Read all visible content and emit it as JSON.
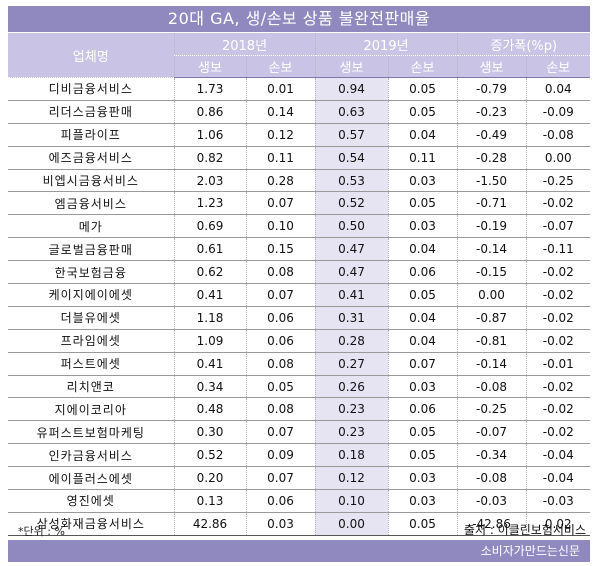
{
  "title": "20대 GA, 생/손보 상품 불완전판매율",
  "header": {
    "company_col": "업체명",
    "year_2018": "2018년",
    "year_2019": "2019년",
    "change": "증가폭(%p)",
    "life": "생보",
    "nonlife": "손보"
  },
  "rows": [
    {
      "name": "디비금융서비스",
      "y2018_life": "1.73",
      "y2018_nonlife": "0.01",
      "y2019_life": "0.94",
      "y2019_nonlife": "0.05",
      "chg_life": "-0.79",
      "chg_nonlife": "0.04"
    },
    {
      "name": "리더스금융판매",
      "y2018_life": "0.86",
      "y2018_nonlife": "0.14",
      "y2019_life": "0.63",
      "y2019_nonlife": "0.05",
      "chg_life": "-0.23",
      "chg_nonlife": "-0.09"
    },
    {
      "name": "피플라이프",
      "y2018_life": "1.06",
      "y2018_nonlife": "0.12",
      "y2019_life": "0.57",
      "y2019_nonlife": "0.04",
      "chg_life": "-0.49",
      "chg_nonlife": "-0.08"
    },
    {
      "name": "에즈금융서비스",
      "y2018_life": "0.82",
      "y2018_nonlife": "0.11",
      "y2019_life": "0.54",
      "y2019_nonlife": "0.11",
      "chg_life": "-0.28",
      "chg_nonlife": "0.00"
    },
    {
      "name": "비엡시금융서비스",
      "y2018_life": "2.03",
      "y2018_nonlife": "0.28",
      "y2019_life": "0.53",
      "y2019_nonlife": "0.03",
      "chg_life": "-1.50",
      "chg_nonlife": "-0.25"
    },
    {
      "name": "엠금융서비스",
      "y2018_life": "1.23",
      "y2018_nonlife": "0.07",
      "y2019_life": "0.52",
      "y2019_nonlife": "0.05",
      "chg_life": "-0.71",
      "chg_nonlife": "-0.02"
    },
    {
      "name": "메가",
      "y2018_life": "0.69",
      "y2018_nonlife": "0.10",
      "y2019_life": "0.50",
      "y2019_nonlife": "0.03",
      "chg_life": "-0.19",
      "chg_nonlife": "-0.07"
    },
    {
      "name": "글로벌금융판매",
      "y2018_life": "0.61",
      "y2018_nonlife": "0.15",
      "y2019_life": "0.47",
      "y2019_nonlife": "0.04",
      "chg_life": "-0.14",
      "chg_nonlife": "-0.11"
    },
    {
      "name": "한국보험금융",
      "y2018_life": "0.62",
      "y2018_nonlife": "0.08",
      "y2019_life": "0.47",
      "y2019_nonlife": "0.06",
      "chg_life": "-0.15",
      "chg_nonlife": "-0.02"
    },
    {
      "name": "케이지에이에셋",
      "y2018_life": "0.41",
      "y2018_nonlife": "0.07",
      "y2019_life": "0.41",
      "y2019_nonlife": "0.05",
      "chg_life": "0.00",
      "chg_nonlife": "-0.02"
    },
    {
      "name": "더블유에셋",
      "y2018_life": "1.18",
      "y2018_nonlife": "0.06",
      "y2019_life": "0.31",
      "y2019_nonlife": "0.04",
      "chg_life": "-0.87",
      "chg_nonlife": "-0.02"
    },
    {
      "name": "프라임에셋",
      "y2018_life": "1.09",
      "y2018_nonlife": "0.06",
      "y2019_life": "0.28",
      "y2019_nonlife": "0.04",
      "chg_life": "-0.81",
      "chg_nonlife": "-0.02"
    },
    {
      "name": "퍼스트에셋",
      "y2018_life": "0.41",
      "y2018_nonlife": "0.08",
      "y2019_life": "0.27",
      "y2019_nonlife": "0.07",
      "chg_life": "-0.14",
      "chg_nonlife": "-0.01"
    },
    {
      "name": "리치앤코",
      "y2018_life": "0.34",
      "y2018_nonlife": "0.05",
      "y2019_life": "0.26",
      "y2019_nonlife": "0.03",
      "chg_life": "-0.08",
      "chg_nonlife": "-0.02"
    },
    {
      "name": "지에이코리아",
      "y2018_life": "0.48",
      "y2018_nonlife": "0.08",
      "y2019_life": "0.23",
      "y2019_nonlife": "0.06",
      "chg_life": "-0.25",
      "chg_nonlife": "-0.02"
    },
    {
      "name": "유퍼스트보험마케팅",
      "y2018_life": "0.30",
      "y2018_nonlife": "0.07",
      "y2019_life": "0.23",
      "y2019_nonlife": "0.05",
      "chg_life": "-0.07",
      "chg_nonlife": "-0.02"
    },
    {
      "name": "인카금융서비스",
      "y2018_life": "0.52",
      "y2018_nonlife": "0.09",
      "y2019_life": "0.18",
      "y2019_nonlife": "0.05",
      "chg_life": "-0.34",
      "chg_nonlife": "-0.04"
    },
    {
      "name": "에이플러스에셋",
      "y2018_life": "0.20",
      "y2018_nonlife": "0.07",
      "y2019_life": "0.12",
      "y2019_nonlife": "0.03",
      "chg_life": "-0.08",
      "chg_nonlife": "-0.04"
    },
    {
      "name": "영진에셋",
      "y2018_life": "0.13",
      "y2018_nonlife": "0.06",
      "y2019_life": "0.10",
      "y2019_nonlife": "0.03",
      "chg_life": "-0.03",
      "chg_nonlife": "-0.03"
    },
    {
      "name": "삼성화재금융서비스",
      "y2018_life": "42.86",
      "y2018_nonlife": "0.03",
      "y2019_life": "0.00",
      "y2019_nonlife": "0.05",
      "chg_life": "-42.86",
      "chg_nonlife": "0.02"
    }
  ],
  "unit_note": "*단위 : %",
  "source": "출처 : 이클린보험서비스",
  "footer": "소비자가만드는신문",
  "colors": {
    "banner": "#8f89bf",
    "header": "#c9c4e6",
    "highlight": "#e6e3f3"
  }
}
